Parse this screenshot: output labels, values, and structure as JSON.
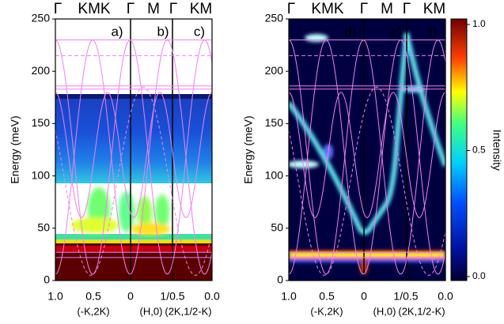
{
  "chart_data": [
    {
      "type": "heatmap",
      "y_label": "Energy (meV)",
      "ylim": [
        0,
        250
      ],
      "yticks": [
        0,
        50,
        100,
        150,
        200,
        250
      ],
      "top_labels": [
        "Γ",
        "KMK",
        "Γ",
        "M",
        "Γ",
        "KM"
      ],
      "panel_labels": [
        "a)",
        "b)",
        "c)"
      ],
      "x_tick_labels": [
        "1.0",
        "0.5",
        "0",
        "1/0.5",
        "0.0"
      ],
      "x_path_labels": [
        "(-K,2K)",
        "(H,0)",
        "(2K,1/2-K)"
      ]
    },
    {
      "type": "heatmap",
      "y_label": "Energy (meV)",
      "ylim": [
        0,
        250
      ],
      "yticks": [
        0,
        50,
        100,
        150,
        200,
        250
      ],
      "top_labels": [
        "Γ",
        "KMK",
        "Γ",
        "M",
        "Γ",
        "KM"
      ],
      "panel_labels": [
        "d)",
        "e)",
        "f)"
      ],
      "x_tick_labels": [
        "1.0",
        "0.5",
        "0",
        "1/0.5",
        "0.0"
      ],
      "x_path_labels": [
        "(-K,2K)",
        "(H,0)",
        "(2K,1/2-K)"
      ],
      "colorbar": {
        "label": "Intensity",
        "lim": [
          0,
          1
        ],
        "ticks": [
          {
            "value": 0,
            "label": "0.0"
          },
          0.5,
          {
            "value": 1,
            "label": "1.0"
          }
        ]
      }
    }
  ]
}
